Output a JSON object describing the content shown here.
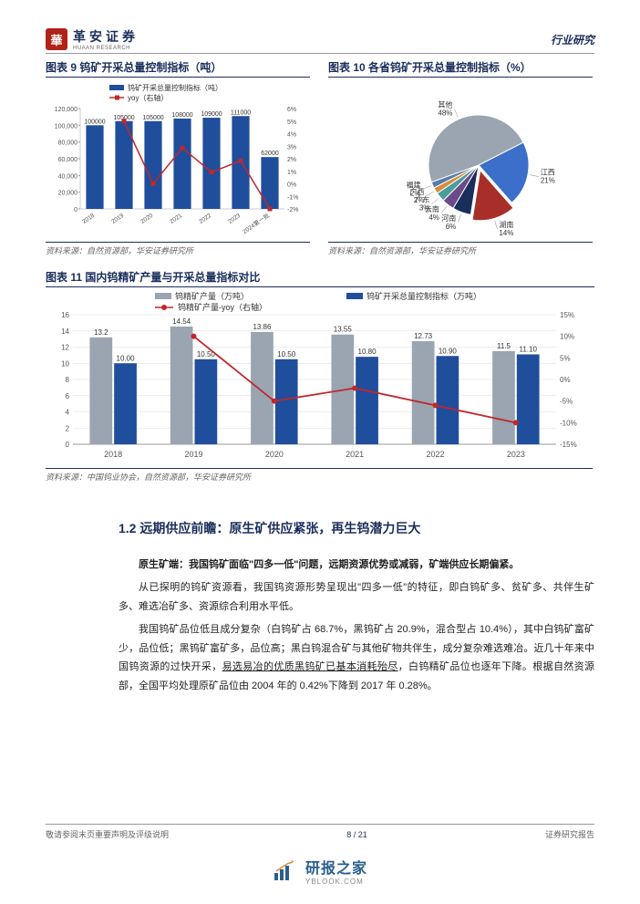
{
  "header": {
    "logo_cn": "革安证券",
    "logo_en": "HUAAN RESEARCH",
    "right": "行业研究"
  },
  "chart9": {
    "title": "图表 9 钨矿开采总量控制指标（吨）",
    "legend_bar": "钨矿开采总量控制指标（吨）",
    "legend_line": "yoy（右轴）",
    "years": [
      "2018",
      "2019",
      "2020",
      "2021",
      "2022",
      "2023",
      "2024第一批"
    ],
    "values": [
      100000,
      105000,
      105000,
      108000,
      109000,
      111000,
      62000
    ],
    "labels": [
      "100000",
      "105000",
      "105000",
      "108000",
      "109000",
      "111000",
      "62000"
    ],
    "yoy": [
      null,
      5.0,
      0,
      2.86,
      0.93,
      1.83,
      -2.0
    ],
    "y_left": {
      "min": 0,
      "max": 120000,
      "step": 20000,
      "ticks": [
        "0",
        "20,000",
        "40,000",
        "60,000",
        "80,000",
        "100,000",
        "120,000"
      ]
    },
    "y_right": {
      "min": -2,
      "max": 6,
      "step": 1,
      "ticks": [
        "-2%",
        "-1%",
        "0%",
        "1%",
        "2%",
        "3%",
        "4%",
        "5%",
        "6%"
      ]
    },
    "bar_color": "#1f4e9c",
    "line_color": "#c0272d",
    "source": "资料来源：自然资源部，华安证券研究所"
  },
  "chart10": {
    "title": "图表 10 各省钨矿开采总量控制指标（%）",
    "slices": [
      {
        "label": "江西",
        "pct": 21,
        "color": "#3b6fc9"
      },
      {
        "label": "湖南",
        "pct": 14,
        "color": "#a82e2a"
      },
      {
        "label": "河南",
        "pct": 6,
        "color": "#1a2e5c"
      },
      {
        "label": "云南",
        "pct": 4,
        "color": "#6b4a8a"
      },
      {
        "label": "广东",
        "pct": 3,
        "color": "#4a9d9d"
      },
      {
        "label": "广西",
        "pct": 2,
        "color": "#d88b3a"
      },
      {
        "label": "福建",
        "pct": 2,
        "color": "#5a7ca8"
      },
      {
        "label": "其他",
        "pct": 48,
        "color": "#9aa5b1"
      }
    ],
    "source": "资料来源：自然资源部，华安证券研究所"
  },
  "chart11": {
    "title": "图表 11 国内钨精矿产量与开采总量指标对比",
    "legend_grey": "钨精矿产量（万吨）",
    "legend_blue": "钨矿开采总量控制指标（万吨）",
    "legend_line": "钨精矿产量-yoy（右轴）",
    "years": [
      "2018",
      "2019",
      "2020",
      "2021",
      "2022",
      "2023"
    ],
    "grey_values": [
      13.2,
      14.54,
      13.86,
      13.55,
      12.73,
      11.5
    ],
    "grey_labels": [
      "13.2",
      "14.54",
      "13.86",
      "13.55",
      "12.73",
      "11.5"
    ],
    "blue_values": [
      10.0,
      10.5,
      10.5,
      10.8,
      10.9,
      11.1
    ],
    "blue_labels": [
      "10.00",
      "10.50",
      "10.50",
      "10.80",
      "10.90",
      "11.10"
    ],
    "yoy": [
      null,
      10,
      -5,
      -2,
      -6,
      -10
    ],
    "y_left": {
      "min": 0,
      "max": 16,
      "step": 2,
      "ticks": [
        "0",
        "2",
        "4",
        "6",
        "8",
        "10",
        "12",
        "14",
        "16"
      ]
    },
    "y_right": {
      "min": -15,
      "max": 15,
      "step": 5,
      "ticks": [
        "-15%",
        "-10%",
        "-5%",
        "0%",
        "5%",
        "10%",
        "15%"
      ]
    },
    "grey_color": "#9aa5b1",
    "blue_color": "#1f4e9c",
    "line_color": "#c0272d",
    "source": "资料来源：中国钨业协会，自然资源部，华安证券研究所"
  },
  "section": {
    "heading": "1.2 远期供应前瞻：原生矿供应紧张，再生钨潜力巨大",
    "bold": "原生矿端：我国钨矿面临\"四多一低\"问题，远期资源优势或减弱，矿端供应长期偏紧。",
    "p1": "从已探明的钨矿资源看，我国钨资源形势呈现出\"四多一低\"的特征，即白钨矿多、贫矿多、共伴生矿多、难选冶矿多、资源综合利用水平低。",
    "p2_a": "我国钨矿品位低且成分复杂（白钨矿占 68.7%，黑钨矿占 20.9%，混合型占 10.4%），其中白钨矿富矿少，品位低；黑钨矿富矿多，品位高；黑白钨混合矿与其他矿物共伴生，成分复杂难选难冶。近几十年来中国钨资源的过快开采，",
    "p2_u": "易选易冶的优质黑钨矿已基本消耗殆尽",
    "p2_b": "，白钨精矿品位也逐年下降。根据自然资源部，全国平均处理原矿品位由 2004 年的 0.42%下降到 2017 年 0.28%。"
  },
  "footer": {
    "left": "敬请参阅末页重要声明及评级说明",
    "page": "8 / 21",
    "right": "证券研究报告"
  },
  "watermark": {
    "cn": "研报之家",
    "en": "YBLOOK.COM"
  }
}
